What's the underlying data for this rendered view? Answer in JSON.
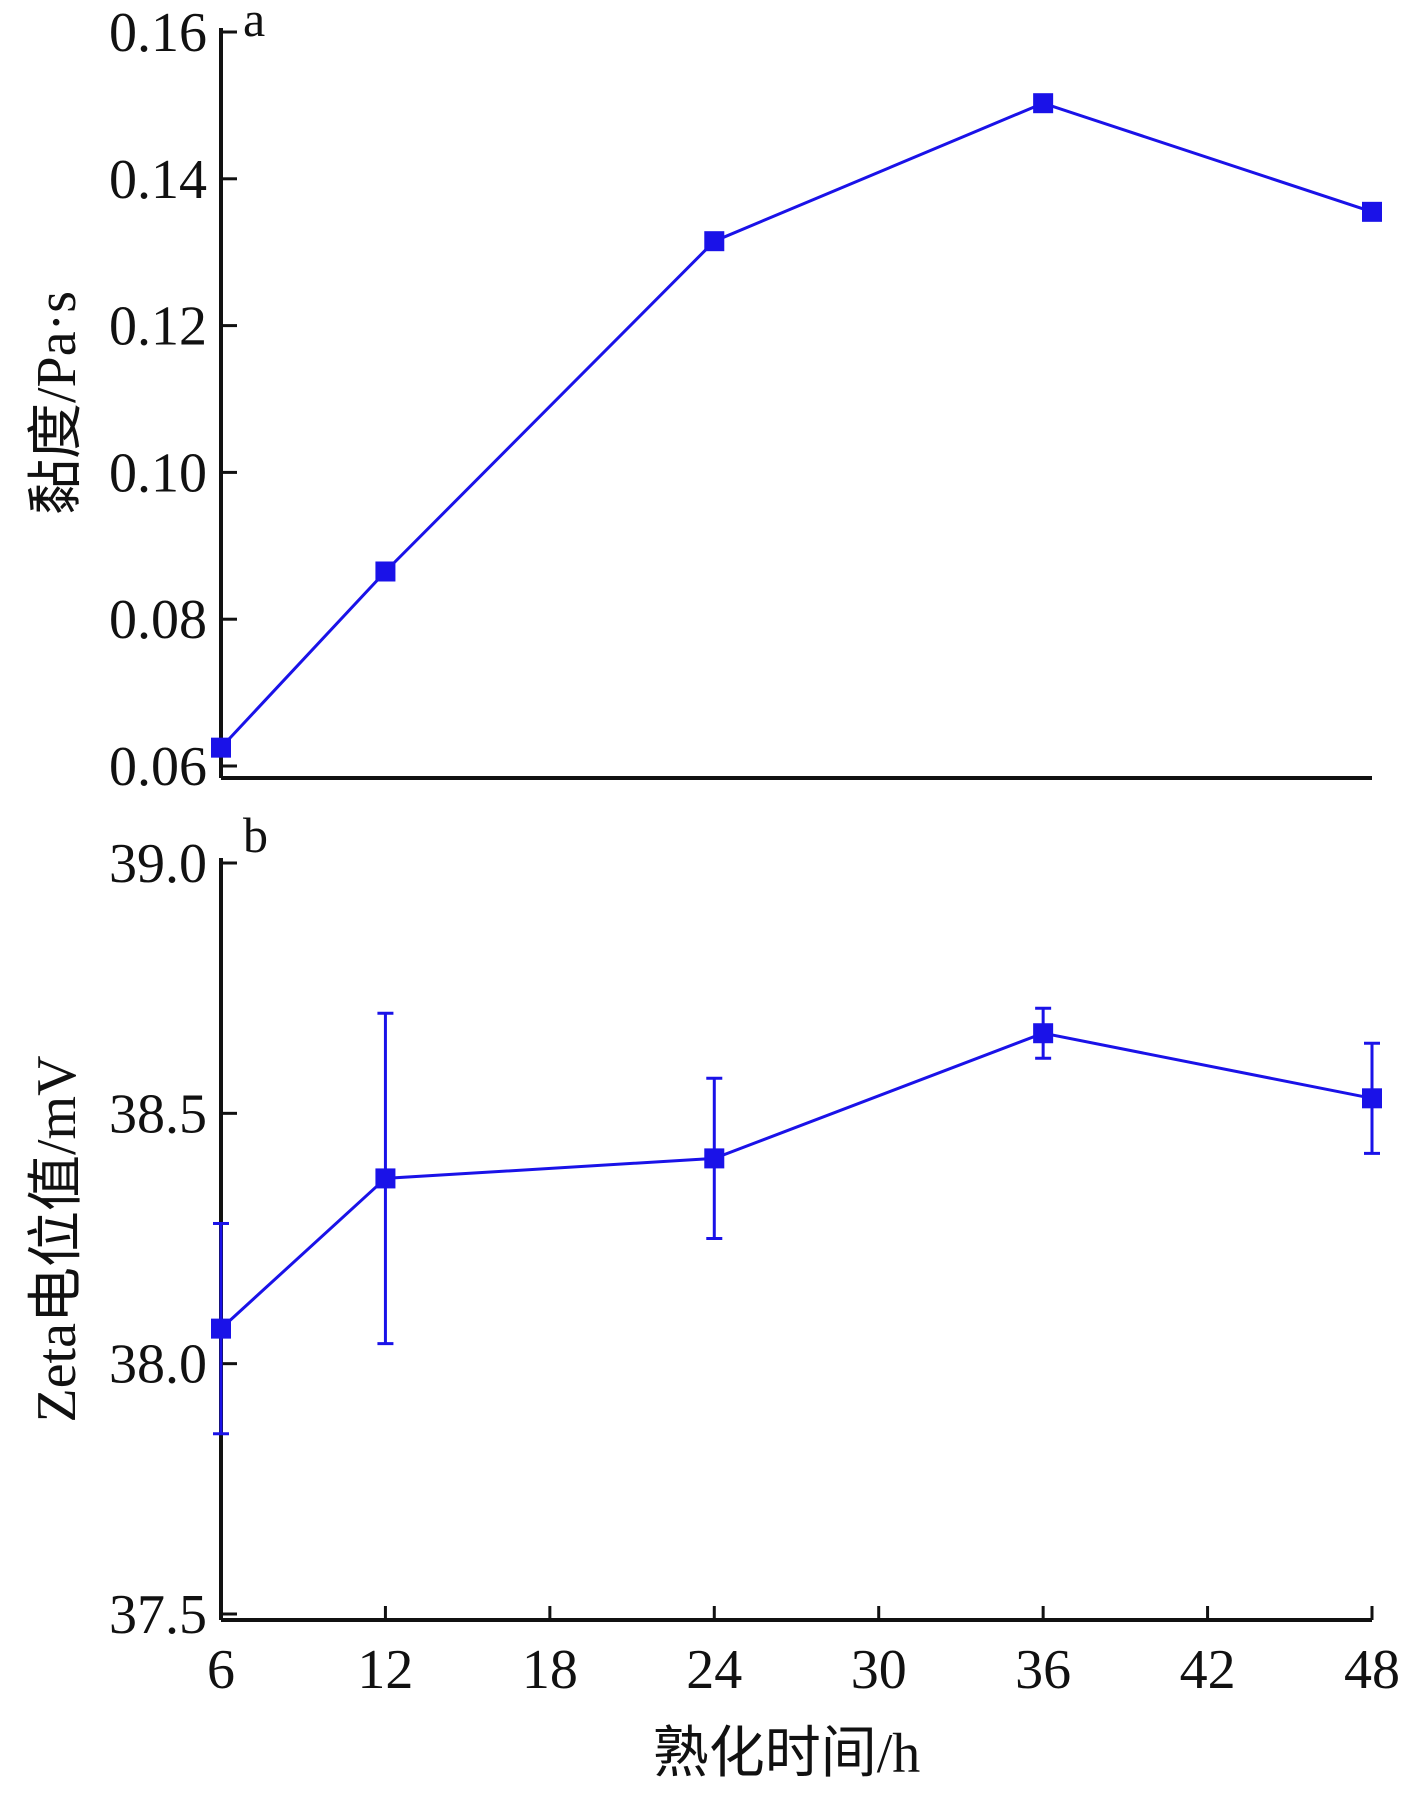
{
  "chart_data": [
    {
      "type": "line",
      "panel_label": "a",
      "ylabel": "黏度/Pa·s",
      "xlabel": "",
      "ylim": [
        0.06,
        0.16
      ],
      "y_ticks": [
        "0.06",
        "0.08",
        "0.10",
        "0.12",
        "0.14",
        "0.16"
      ],
      "x": [
        6,
        12,
        24,
        36,
        48
      ],
      "series": [
        {
          "values": [
            0.0625,
            0.0865,
            0.1315,
            0.1503,
            0.1355
          ],
          "color": "#1a12e8",
          "marker": "square"
        }
      ]
    },
    {
      "type": "line",
      "panel_label": "b",
      "ylabel": "Zeta电位值/mV",
      "xlabel": "熟化时间/h",
      "ylim": [
        37.5,
        39.0
      ],
      "xlim": [
        6,
        48
      ],
      "y_ticks": [
        "37.5",
        "38.0",
        "38.5",
        "39.0"
      ],
      "x_ticks": [
        "6",
        "12",
        "18",
        "24",
        "30",
        "36",
        "42",
        "48"
      ],
      "x": [
        6,
        12,
        24,
        36,
        48
      ],
      "series": [
        {
          "values": [
            38.07,
            38.37,
            38.41,
            38.66,
            38.53
          ],
          "error": [
            0.21,
            0.33,
            0.16,
            0.05,
            0.11
          ],
          "color": "#1a12e8",
          "marker": "square"
        }
      ]
    }
  ]
}
